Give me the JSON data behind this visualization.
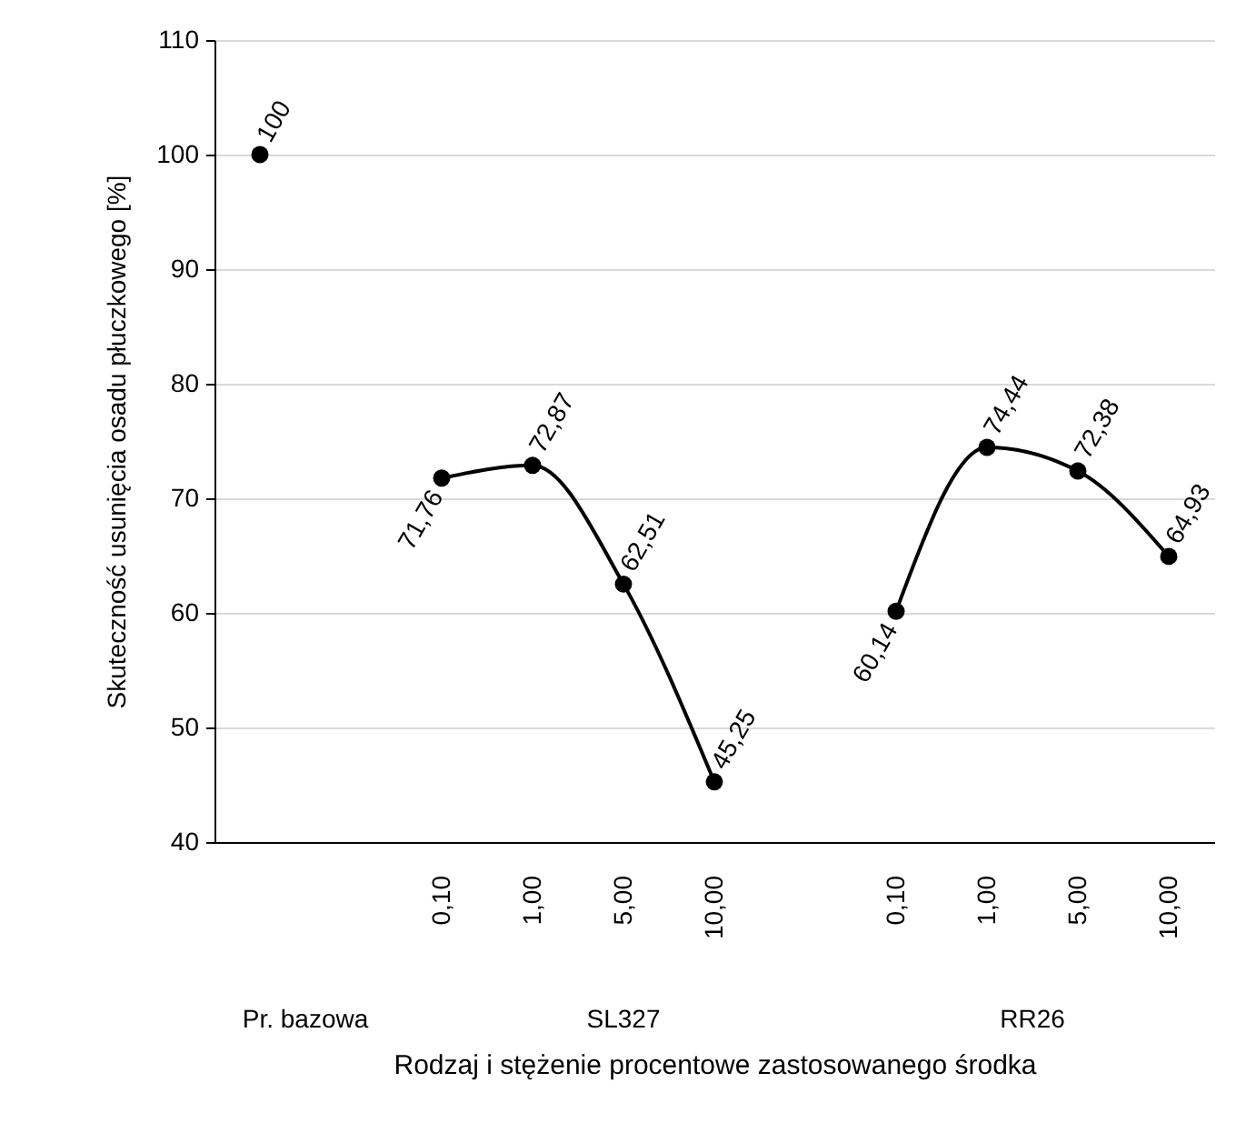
{
  "chart_data": {
    "type": "line",
    "xlabel": "Rodzaj i stężenie procentowe zastosowanego środka",
    "ylabel": "Skuteczność usunięcia osadu płuczkowego [%]",
    "categories": [
      null,
      null,
      "0,10",
      "1,00",
      "5,00",
      "10,00",
      null,
      "0,10",
      "1,00",
      "5,00",
      "10,00"
    ],
    "series": [
      {
        "color": "#000000",
        "values": [
          100,
          null,
          71.76,
          72.87,
          62.51,
          45.25,
          null,
          60.14,
          74.44,
          72.38,
          64.93
        ],
        "value_labels": [
          "100",
          null,
          "71,76",
          "72,87",
          "62,51",
          "45,25",
          null,
          "60,14",
          "74,44",
          "72,38",
          "64,93"
        ]
      }
    ],
    "annotations": [
      "Pr. bazowa",
      "SL327",
      "RR26"
    ],
    "ylim": [
      40,
      110
    ],
    "yticks": [
      40,
      50,
      60,
      70,
      80,
      90,
      100,
      110
    ],
    "grid": "y",
    "marker": "circle",
    "line_style": "solid"
  }
}
